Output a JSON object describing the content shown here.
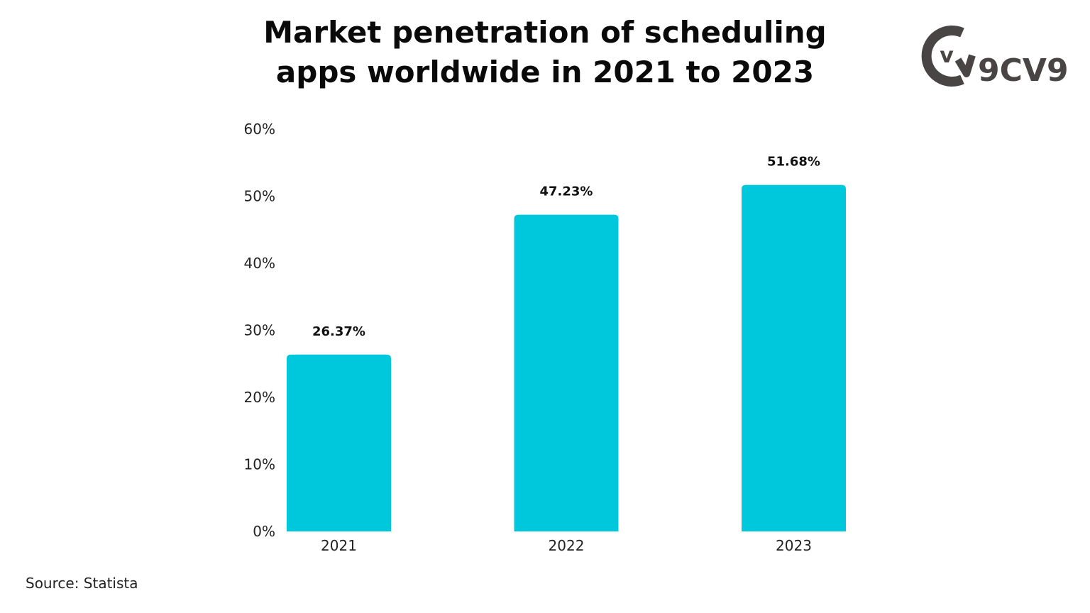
{
  "title": {
    "line1": "Market penetration of scheduling",
    "line2": "apps worldwide in 2021 to 2023"
  },
  "logo": {
    "mark_letter": "v",
    "text": "9CV9",
    "icon": "9cv9-logo-icon",
    "color": "#4a4545"
  },
  "source": "Source: Statista",
  "colors": {
    "bar": "#00c8dc",
    "text": "#111111"
  },
  "chart_data": {
    "type": "bar",
    "categories": [
      "2021",
      "2022",
      "2023"
    ],
    "values": [
      26.37,
      47.23,
      51.68
    ],
    "value_labels": [
      "26.37%",
      "47.23%",
      "51.68%"
    ],
    "ylim": [
      0,
      60
    ],
    "yticks": [
      0,
      10,
      20,
      30,
      40,
      50,
      60
    ],
    "ytick_labels": [
      "0%",
      "10%",
      "20%",
      "30%",
      "40%",
      "50%",
      "60%"
    ],
    "grid": false,
    "legend": "none"
  }
}
